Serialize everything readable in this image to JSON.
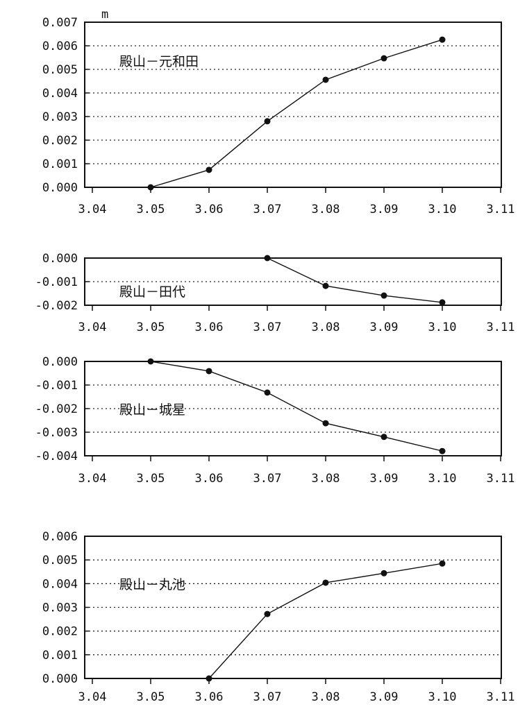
{
  "unit_label": "m",
  "chart_data": [
    {
      "type": "line",
      "title": "殿山－元和田",
      "x": [
        3.05,
        3.06,
        3.07,
        3.08,
        3.09,
        3.1
      ],
      "values": [
        0.0,
        0.00074,
        0.0028,
        0.00456,
        0.00547,
        0.00626
      ],
      "xlim": [
        3.04,
        3.11
      ],
      "ylim": [
        0.0,
        0.007
      ],
      "xticks": [
        "3.04",
        "3.05",
        "3.06",
        "3.07",
        "3.08",
        "3.09",
        "3.10",
        "3.11"
      ],
      "yticks": [
        "0.000",
        "0.001",
        "0.002",
        "0.003",
        "0.004",
        "0.005",
        "0.006",
        "0.007"
      ],
      "grid": "horizontal-dotted"
    },
    {
      "type": "line",
      "title": "殿山－田代",
      "x": [
        3.07,
        3.08,
        3.09,
        3.1
      ],
      "values": [
        0.0,
        -0.00118,
        -0.00159,
        -0.00188
      ],
      "xlim": [
        3.04,
        3.11
      ],
      "ylim": [
        -0.002,
        0.0
      ],
      "xticks": [
        "3.04",
        "3.05",
        "3.06",
        "3.07",
        "3.08",
        "3.09",
        "3.10",
        "3.11"
      ],
      "yticks": [
        "-0.002",
        "-0.001",
        "0.000"
      ],
      "grid": "horizontal-dotted"
    },
    {
      "type": "line",
      "title": "殿山－城星",
      "x": [
        3.05,
        3.06,
        3.07,
        3.08,
        3.09,
        3.1
      ],
      "values": [
        0.0,
        -0.00041,
        -0.00132,
        -0.00262,
        -0.0032,
        -0.0038
      ],
      "xlim": [
        3.04,
        3.11
      ],
      "ylim": [
        -0.004,
        0.0
      ],
      "xticks": [
        "3.04",
        "3.05",
        "3.06",
        "3.07",
        "3.08",
        "3.09",
        "3.10",
        "3.11"
      ],
      "yticks": [
        "-0.004",
        "-0.003",
        "-0.002",
        "-0.001",
        "0.000"
      ],
      "grid": "horizontal-dotted"
    },
    {
      "type": "line",
      "title": "殿山－丸池",
      "x": [
        3.06,
        3.07,
        3.08,
        3.09,
        3.1
      ],
      "values": [
        0.0,
        0.00272,
        0.00404,
        0.00444,
        0.00485
      ],
      "xlim": [
        3.04,
        3.11
      ],
      "ylim": [
        0.0,
        0.006
      ],
      "xticks": [
        "3.04",
        "3.05",
        "3.06",
        "3.07",
        "3.08",
        "3.09",
        "3.10",
        "3.11"
      ],
      "yticks": [
        "0.000",
        "0.001",
        "0.002",
        "0.003",
        "0.004",
        "0.005",
        "0.006"
      ],
      "grid": "horizontal-dotted"
    }
  ]
}
